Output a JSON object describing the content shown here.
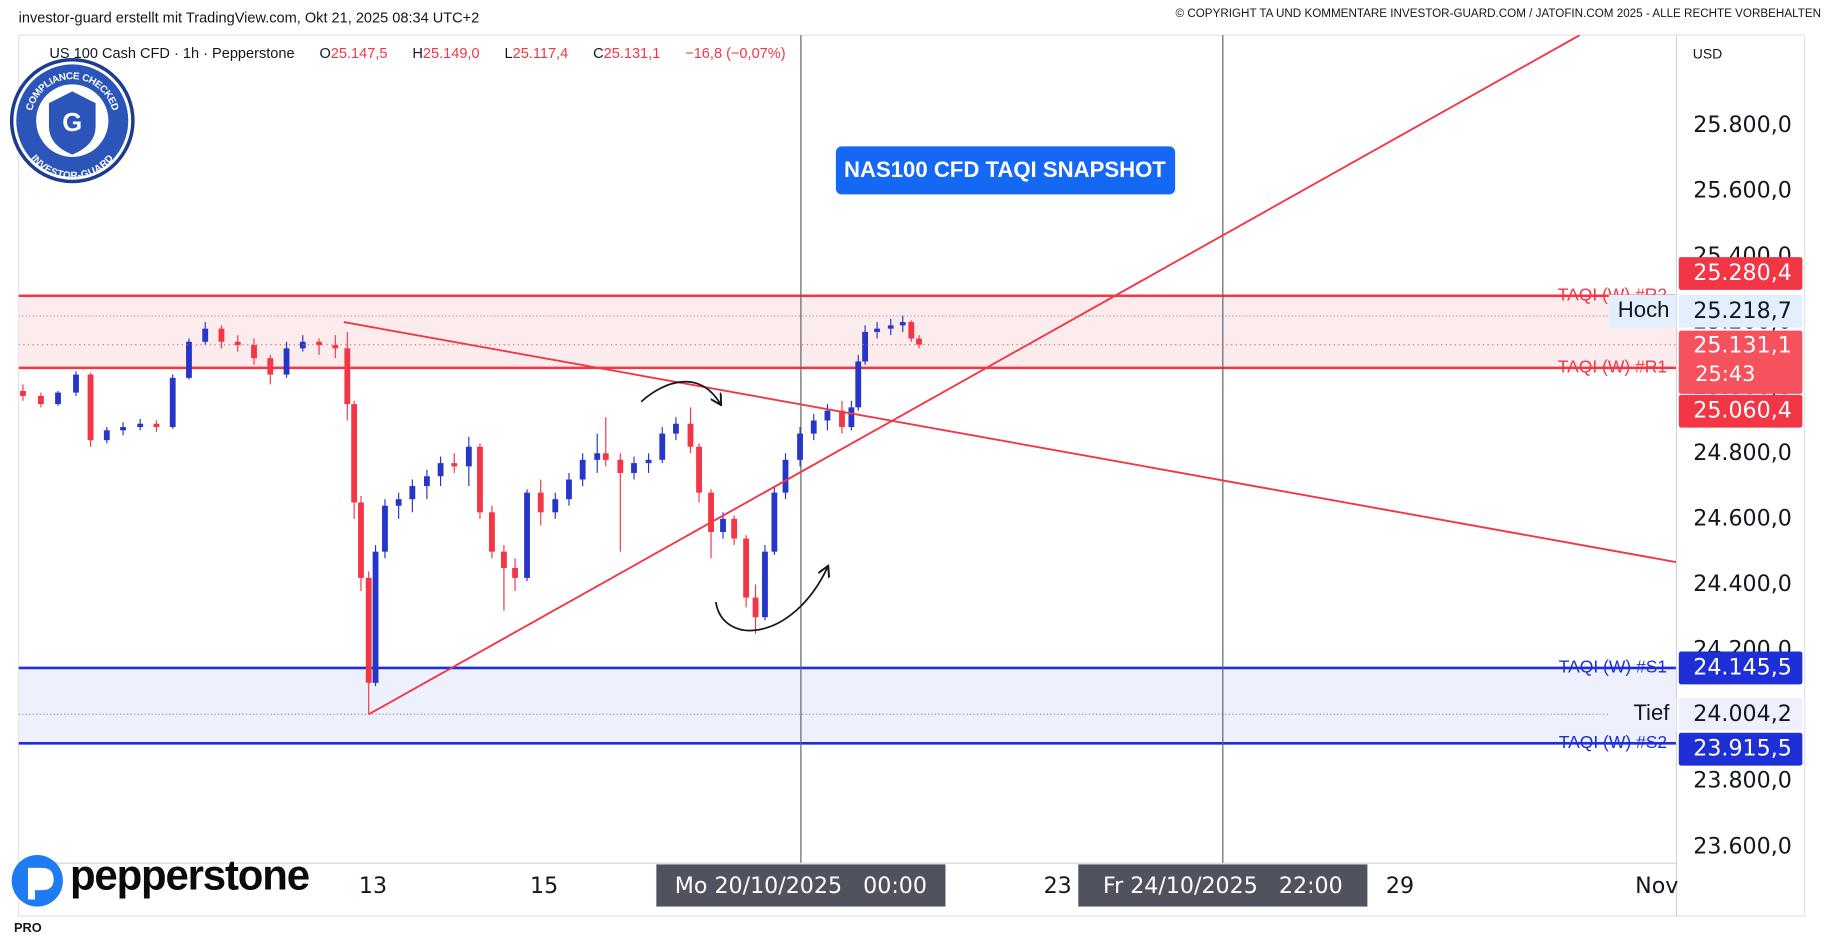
{
  "chart_data": {
    "type": "candlestick",
    "header": "investor-guard erstellt mit TradingView.com, Okt 21, 2025 08:34 UTC+2",
    "copyright": "© COPYRIGHT TA UND KOMMENTARE INVESTOR-GUARD.COM / JATOFIN.COM 2025 - ALLE RECHTE VORBEHALTEN",
    "title": "NAS100 CFD TAQI SNAPSHOT",
    "currency": "USD",
    "legend": {
      "symbol": "US 100 Cash CFD · 1h · Pepperstone",
      "values": [
        {
          "key": "O",
          "value": "25.147,5"
        },
        {
          "key": "H",
          "value": "25.149,0"
        },
        {
          "key": "L",
          "value": "25.117,4"
        },
        {
          "key": "C",
          "value": "25.131,1"
        }
      ],
      "change": "−16,8 (−0,07%)"
    },
    "badge": {
      "top": "COMPLIANCE CHECKED",
      "bottom": "INVESTOR-GUARD",
      "letter": "G"
    },
    "broker": "pepperstone",
    "platform": "PRO",
    "up_color": "#2636c9",
    "down_color": "#f23645",
    "xlim": [
      -4.14,
      15.23
    ],
    "xticks": [
      {
        "value": 0,
        "label": "13"
      },
      {
        "value": 2,
        "label": "15"
      },
      {
        "value": 8,
        "label": "23"
      },
      {
        "value": 12,
        "label": "29"
      },
      {
        "value": 15,
        "label": "Nov"
      }
    ],
    "crosshairs": [
      {
        "value": 5,
        "label": "Mo 20/10/2025   00:00"
      },
      {
        "value": 9.93,
        "label": "Fr 24/10/2025   22:00"
      }
    ],
    "ylim": [
      23550,
      26075
    ],
    "yticks": [
      {
        "value": 23600,
        "label": "23.600,0"
      },
      {
        "value": 23800,
        "label": "23.800,0"
      },
      {
        "value": 24000,
        "label": "24.000,0"
      },
      {
        "value": 24200,
        "label": "24.200,0"
      },
      {
        "value": 24400,
        "label": "24.400,0"
      },
      {
        "value": 24600,
        "label": "24.600,0"
      },
      {
        "value": 24800,
        "label": "24.800,0"
      },
      {
        "value": 25000,
        "label": "25.000,0"
      },
      {
        "value": 25200,
        "label": "25.200,0"
      },
      {
        "value": 25400,
        "label": "25.400,0"
      },
      {
        "value": 25600,
        "label": "25.600,0"
      },
      {
        "value": 25800,
        "label": "25.800,0"
      }
    ],
    "levels": [
      {
        "name": "TAQI (W) #R2",
        "value": 25280.4,
        "value_label": "25.280,4",
        "color": "#f23645",
        "zone_color": "#fdeced"
      },
      {
        "name": "TAQI (W) #R1",
        "value": 25060.4,
        "value_label": "25.060,4",
        "color": "#f23645"
      },
      {
        "name": "TAQI (W) #S1",
        "value": 24145.5,
        "value_label": "24.145,5",
        "color": "#1e2fd6",
        "zone_color": "#eef0fd"
      },
      {
        "name": "TAQI (W) #S2",
        "value": 23915.5,
        "value_label": "23.915,5",
        "color": "#1e2fd6"
      }
    ],
    "high": {
      "label": "Hoch",
      "value": 25218.7,
      "value_label": "25.218,7"
    },
    "low": {
      "label": "Tief",
      "value": 24004.2,
      "value_label": "24.004,2"
    },
    "last": {
      "value": 25131.1,
      "value_label": "25.131,1",
      "countdown": "25:43",
      "color": "#f5525e"
    },
    "trendlines": [
      {
        "color": "#f23645",
        "x": [
          -0.34,
          15.23
        ],
        "y": [
          25200,
          24468
        ]
      },
      {
        "color": "#f23645",
        "x": [
          -0.05,
          14.1
        ],
        "y": [
          24004,
          26075
        ]
      }
    ],
    "candles": [
      [
        -4.09,
        24990,
        25010,
        24960,
        24975
      ],
      [
        -3.88,
        24975,
        24985,
        24940,
        24950
      ],
      [
        -3.68,
        24950,
        24990,
        24945,
        24985
      ],
      [
        -3.47,
        24985,
        25050,
        24975,
        25040
      ],
      [
        -3.3,
        25040,
        25045,
        24820,
        24840
      ],
      [
        -3.11,
        24840,
        24880,
        24830,
        24870
      ],
      [
        -2.92,
        24870,
        24895,
        24855,
        24880
      ],
      [
        -2.72,
        24880,
        24905,
        24870,
        24890
      ],
      [
        -2.53,
        24890,
        24900,
        24865,
        24880
      ],
      [
        -2.34,
        24880,
        25040,
        24875,
        25030
      ],
      [
        -2.15,
        25030,
        25150,
        25025,
        25140
      ],
      [
        -1.96,
        25140,
        25200,
        25130,
        25180
      ],
      [
        -1.77,
        25180,
        25190,
        25120,
        25140
      ],
      [
        -1.58,
        25140,
        25160,
        25110,
        25130
      ],
      [
        -1.39,
        25130,
        25150,
        25070,
        25090
      ],
      [
        -1.2,
        25090,
        25100,
        25010,
        25040
      ],
      [
        -1.01,
        25040,
        25140,
        25030,
        25120
      ],
      [
        -0.82,
        25120,
        25160,
        25110,
        25140
      ],
      [
        -0.63,
        25140,
        25150,
        25100,
        25130
      ],
      [
        -0.44,
        25130,
        25160,
        25090,
        25120
      ],
      [
        -0.3,
        25120,
        25170,
        24900,
        24950
      ],
      [
        -0.22,
        24950,
        24960,
        24600,
        24650
      ],
      [
        -0.14,
        24650,
        24670,
        24380,
        24420
      ],
      [
        -0.05,
        24420,
        24440,
        24004,
        24100
      ],
      [
        0.03,
        24100,
        24520,
        24090,
        24500
      ],
      [
        0.14,
        24500,
        24660,
        24480,
        24640
      ],
      [
        0.3,
        24640,
        24680,
        24600,
        24660
      ],
      [
        0.46,
        24660,
        24720,
        24620,
        24700
      ],
      [
        0.63,
        24700,
        24750,
        24660,
        24730
      ],
      [
        0.79,
        24730,
        24790,
        24700,
        24770
      ],
      [
        0.95,
        24770,
        24800,
        24740,
        24760
      ],
      [
        1.12,
        24760,
        24850,
        24700,
        24820
      ],
      [
        1.25,
        24820,
        24830,
        24600,
        24620
      ],
      [
        1.39,
        24620,
        24640,
        24480,
        24500
      ],
      [
        1.53,
        24500,
        24520,
        24320,
        24450
      ],
      [
        1.66,
        24450,
        24480,
        24380,
        24420
      ],
      [
        1.8,
        24420,
        24690,
        24410,
        24680
      ],
      [
        1.96,
        24680,
        24720,
        24580,
        24620
      ],
      [
        2.13,
        24620,
        24680,
        24600,
        24660
      ],
      [
        2.29,
        24660,
        24740,
        24640,
        24720
      ],
      [
        2.45,
        24720,
        24800,
        24700,
        24780
      ],
      [
        2.62,
        24780,
        24860,
        24740,
        24800
      ],
      [
        2.72,
        24800,
        24910,
        24760,
        24780
      ],
      [
        2.89,
        24780,
        24800,
        24500,
        24740
      ],
      [
        3.05,
        24740,
        24790,
        24720,
        24770
      ],
      [
        3.22,
        24770,
        24800,
        24740,
        24780
      ],
      [
        3.38,
        24780,
        24880,
        24770,
        24860
      ],
      [
        3.54,
        24860,
        24910,
        24840,
        24890
      ],
      [
        3.71,
        24890,
        24940,
        24800,
        24820
      ],
      [
        3.81,
        24820,
        24830,
        24650,
        24680
      ],
      [
        3.95,
        24680,
        24690,
        24480,
        24560
      ],
      [
        4.09,
        24560,
        24620,
        24540,
        24600
      ],
      [
        4.22,
        24600,
        24610,
        24520,
        24540
      ],
      [
        4.36,
        24540,
        24550,
        24330,
        24360
      ],
      [
        4.47,
        24360,
        24400,
        24250,
        24300
      ],
      [
        4.58,
        24300,
        24520,
        24290,
        24500
      ],
      [
        4.69,
        24500,
        24700,
        24490,
        24680
      ],
      [
        4.82,
        24680,
        24800,
        24660,
        24780
      ],
      [
        4.99,
        24780,
        24880,
        24760,
        24860
      ],
      [
        5.15,
        24860,
        24920,
        24840,
        24900
      ],
      [
        5.31,
        24900,
        24950,
        24870,
        24930
      ],
      [
        5.48,
        24930,
        24960,
        24860,
        24880
      ],
      [
        5.59,
        24880,
        24960,
        24870,
        24940
      ],
      [
        5.67,
        24940,
        25100,
        24930,
        25080
      ],
      [
        5.75,
        25080,
        25190,
        25070,
        25170
      ],
      [
        5.89,
        25170,
        25200,
        25150,
        25180
      ],
      [
        6.05,
        25180,
        25210,
        25160,
        25190
      ],
      [
        6.19,
        25190,
        25219,
        25170,
        25200
      ],
      [
        6.29,
        25200,
        25205,
        25140,
        25150
      ],
      [
        6.38,
        25150,
        25160,
        25120,
        25131
      ]
    ]
  }
}
